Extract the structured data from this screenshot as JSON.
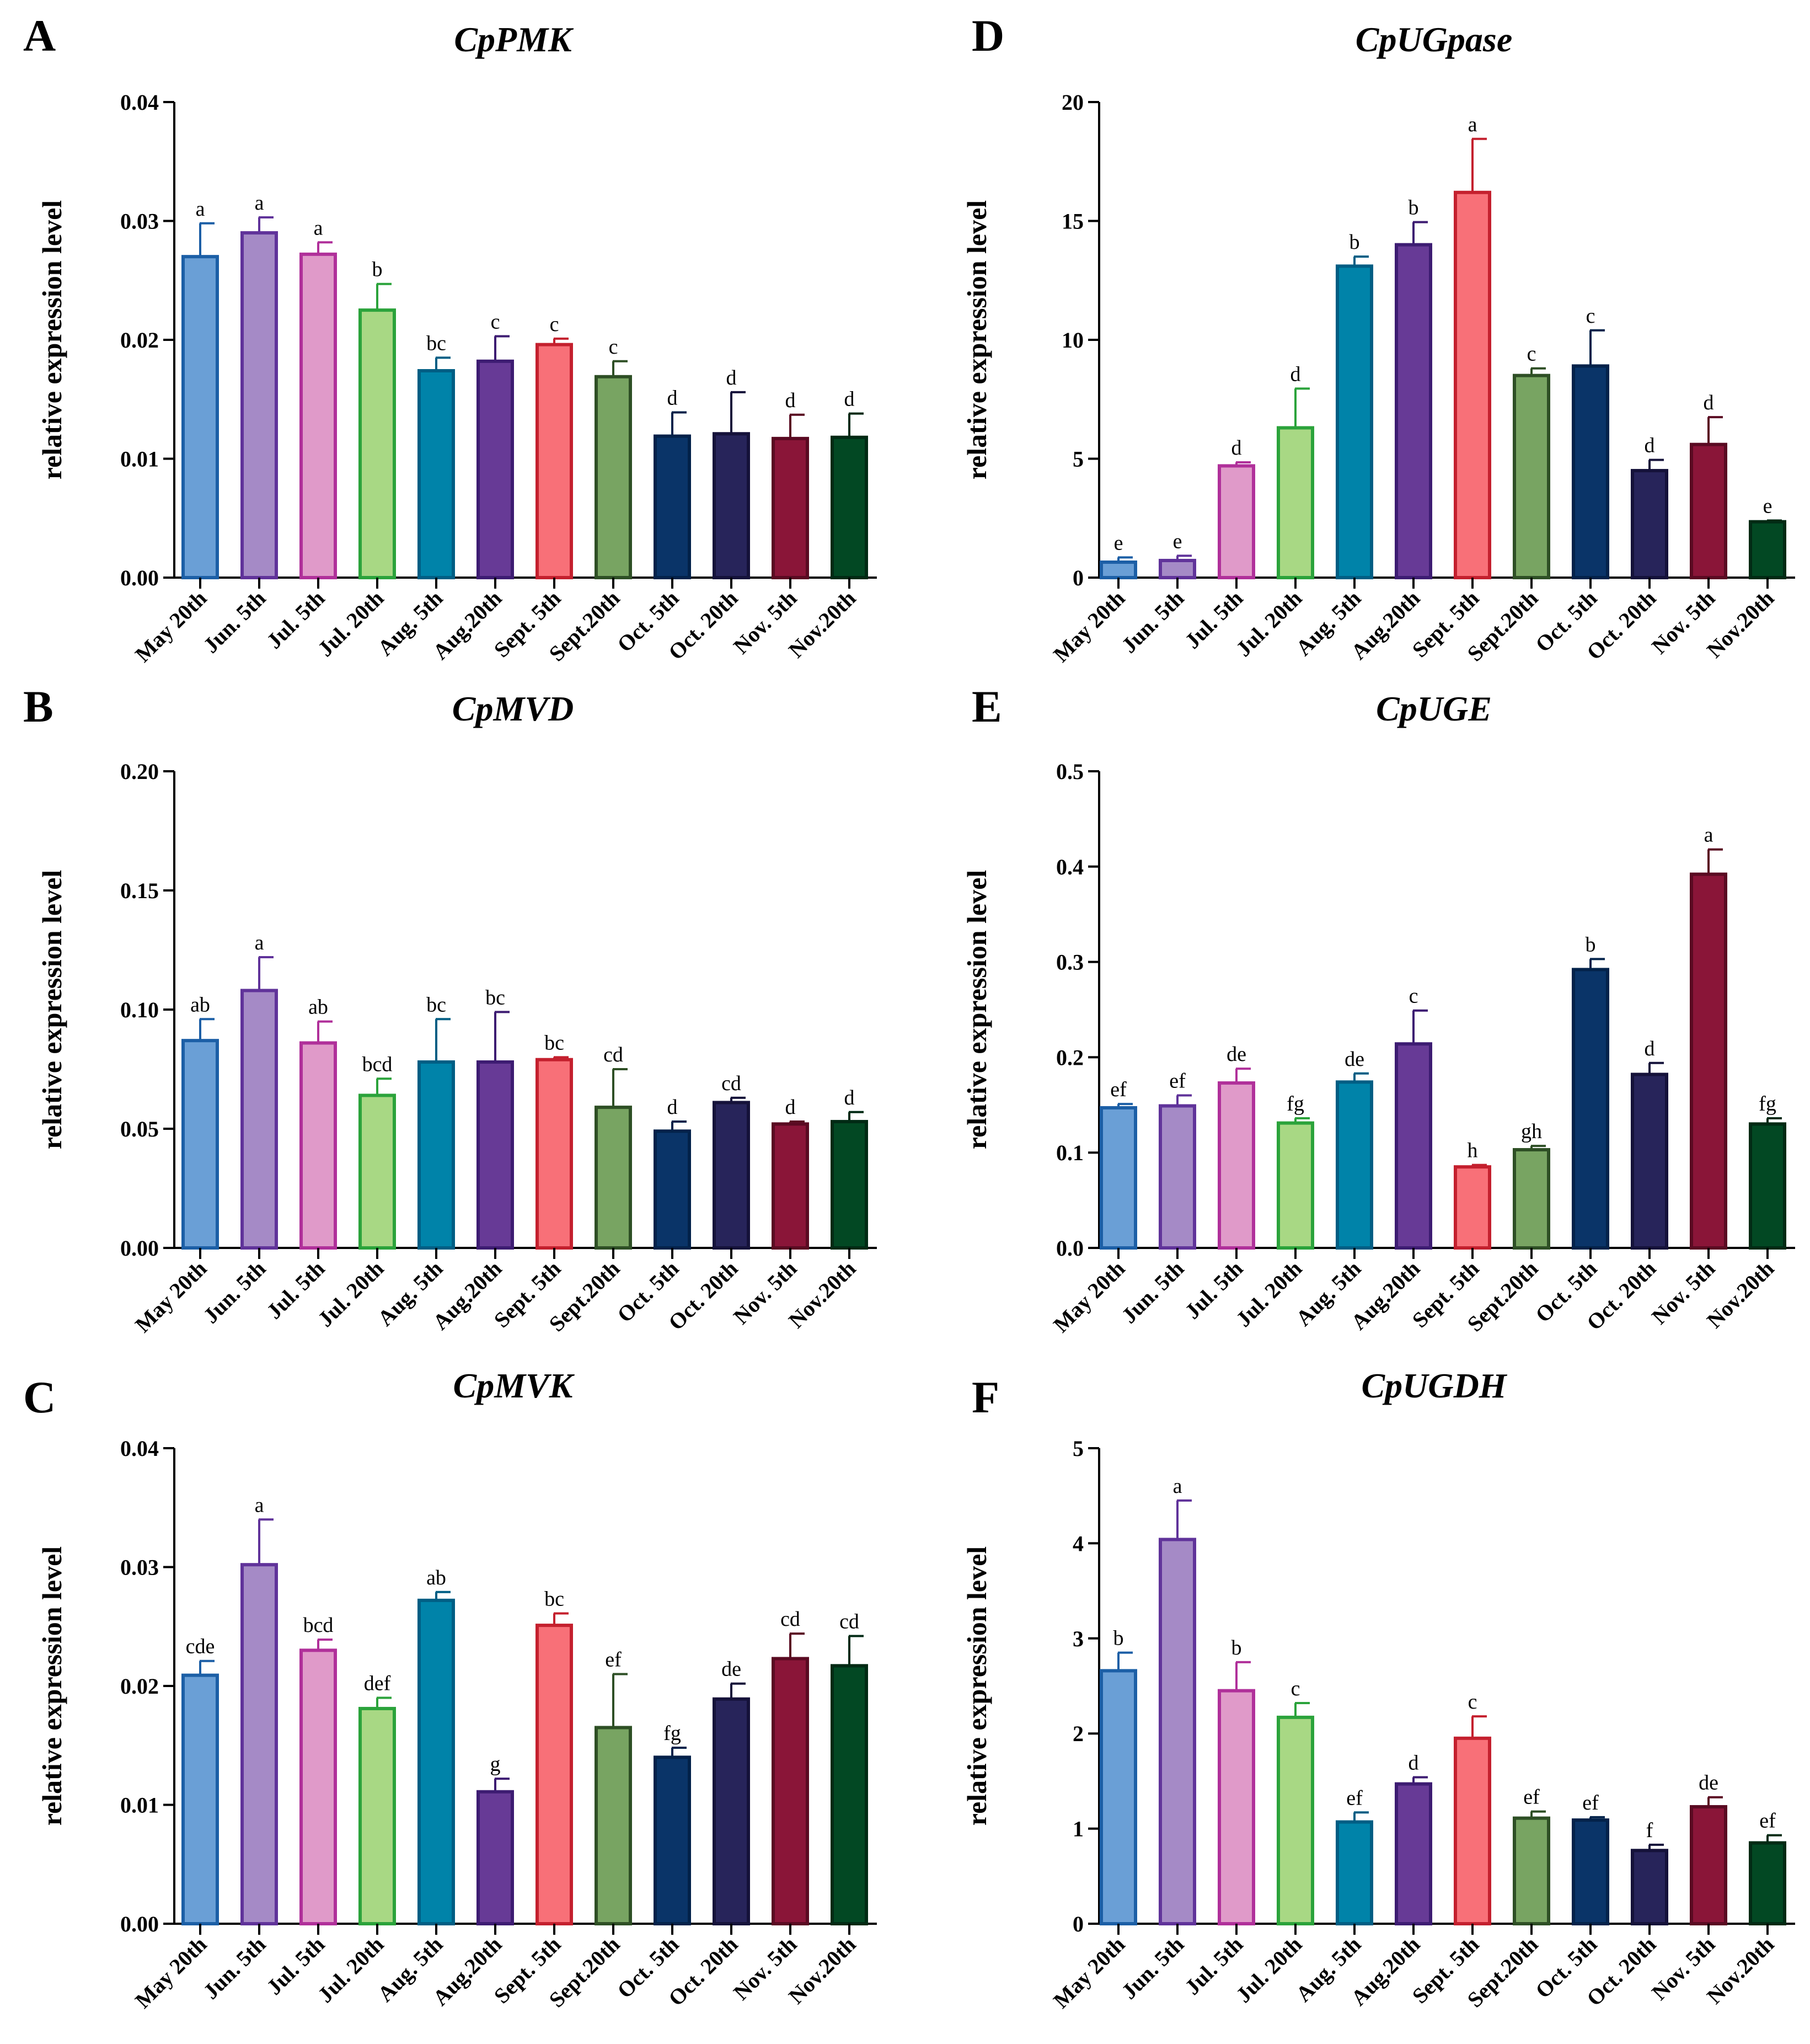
{
  "figure": {
    "categories": [
      "May 20th",
      "Jun. 5th",
      "Jul. 5th",
      "Jul. 20th",
      "Aug. 5th",
      "Aug.20th",
      "Sept. 5th",
      "Sept.20th",
      "Oct. 5th",
      "Oct. 20th",
      "Nov. 5th",
      "Nov.20th"
    ],
    "colors": {
      "fill": [
        "#6A9FD6",
        "#A58AC6",
        "#E09AC9",
        "#A8D884",
        "#0083A9",
        "#673A96",
        "#F87078",
        "#78A462",
        "#0A3468",
        "#27245A",
        "#8A1538",
        "#024823"
      ],
      "border": [
        "#1C5FA6",
        "#60339A",
        "#B0309A",
        "#2BA33B",
        "#005E84",
        "#3D1C72",
        "#C4202E",
        "#2E4F25",
        "#03224A",
        "#15123A",
        "#5A0A22",
        "#012A14"
      ]
    }
  },
  "chart_data": [
    {
      "id": "A",
      "type": "bar",
      "title": "CpPMK",
      "ylabel": "relative expression level",
      "ylim": [
        0,
        0.04
      ],
      "yticks": [
        "0.00",
        "0.01",
        "0.02",
        "0.03",
        "0.04"
      ],
      "values": [
        0.027,
        0.029,
        0.0272,
        0.0225,
        0.0174,
        0.0182,
        0.0196,
        0.0169,
        0.0119,
        0.0121,
        0.0117,
        0.0118
      ],
      "errors": [
        0.0028,
        0.0013,
        0.001,
        0.0022,
        0.0011,
        0.0021,
        0.0005,
        0.0013,
        0.002,
        0.0035,
        0.002,
        0.002
      ],
      "labels": [
        "a",
        "a",
        "a",
        "b",
        "bc",
        "c",
        "c",
        "c",
        "d",
        "d",
        "d",
        "d"
      ]
    },
    {
      "id": "B",
      "type": "bar",
      "title": "CpMVD",
      "ylabel": "relative expression level",
      "ylim": [
        0,
        0.2
      ],
      "yticks": [
        "0.00",
        "0.05",
        "0.10",
        "0.15",
        "0.20"
      ],
      "values": [
        0.087,
        0.108,
        0.086,
        0.064,
        0.078,
        0.078,
        0.079,
        0.059,
        0.049,
        0.061,
        0.052,
        0.053
      ],
      "errors": [
        0.009,
        0.014,
        0.009,
        0.007,
        0.018,
        0.021,
        0.001,
        0.016,
        0.004,
        0.002,
        0.001,
        0.004
      ],
      "labels": [
        "ab",
        "a",
        "ab",
        "bcd",
        "bc",
        "bc",
        "bc",
        "cd",
        "d",
        "cd",
        "d",
        "d"
      ]
    },
    {
      "id": "C",
      "type": "bar",
      "title": "CpMVK",
      "ylabel": "relative expression level",
      "ylim": [
        0,
        0.04
      ],
      "yticks": [
        "0.00",
        "0.01",
        "0.02",
        "0.03",
        "0.04"
      ],
      "values": [
        0.0209,
        0.0302,
        0.023,
        0.0181,
        0.0272,
        0.0111,
        0.0251,
        0.0165,
        0.014,
        0.0189,
        0.0223,
        0.0217
      ],
      "errors": [
        0.0012,
        0.0038,
        0.0009,
        0.0009,
        0.0007,
        0.0011,
        0.001,
        0.0045,
        0.0008,
        0.0013,
        0.0021,
        0.0025
      ],
      "labels": [
        "cde",
        "a",
        "bcd",
        "def",
        "ab",
        "g",
        "bc",
        "ef",
        "fg",
        "de",
        "cd",
        "cd"
      ]
    },
    {
      "id": "D",
      "type": "bar",
      "title": "CpUGpase",
      "ylabel": "relative expression level",
      "ylim": [
        0,
        20
      ],
      "yticks": [
        "0",
        "5",
        "10",
        "15",
        "20"
      ],
      "values": [
        0.65,
        0.72,
        4.7,
        6.3,
        13.1,
        14.0,
        16.2,
        8.5,
        8.9,
        4.5,
        5.6,
        2.35
      ],
      "errors": [
        0.2,
        0.2,
        0.15,
        1.65,
        0.4,
        0.95,
        2.25,
        0.3,
        1.5,
        0.45,
        1.15,
        0.05
      ],
      "labels": [
        "e",
        "e",
        "d",
        "d",
        "b",
        "b",
        "a",
        "c",
        "c",
        "d",
        "d",
        "e"
      ]
    },
    {
      "id": "E",
      "type": "bar",
      "title": "CpUGE",
      "ylabel": "relative expression level",
      "ylim": [
        0,
        0.5
      ],
      "yticks": [
        "0.0",
        "0.1",
        "0.2",
        "0.3",
        "0.4",
        "0.5"
      ],
      "values": [
        0.147,
        0.149,
        0.173,
        0.131,
        0.174,
        0.214,
        0.085,
        0.103,
        0.292,
        0.182,
        0.392,
        0.13
      ],
      "errors": [
        0.004,
        0.011,
        0.015,
        0.005,
        0.009,
        0.035,
        0.002,
        0.004,
        0.011,
        0.012,
        0.026,
        0.006
      ],
      "labels": [
        "ef",
        "ef",
        "de",
        "fg",
        "de",
        "c",
        "h",
        "gh",
        "b",
        "d",
        "a",
        "fg"
      ]
    },
    {
      "id": "F",
      "type": "bar",
      "title": "CpUGDH",
      "ylabel": "relative expression level",
      "ylim": [
        0,
        5
      ],
      "yticks": [
        "0",
        "1",
        "2",
        "3",
        "4",
        "5"
      ],
      "values": [
        2.66,
        4.04,
        2.45,
        2.17,
        1.07,
        1.47,
        1.95,
        1.11,
        1.09,
        0.77,
        1.23,
        0.85
      ],
      "errors": [
        0.19,
        0.41,
        0.3,
        0.15,
        0.1,
        0.07,
        0.23,
        0.07,
        0.03,
        0.06,
        0.1,
        0.08
      ],
      "labels": [
        "b",
        "a",
        "b",
        "c",
        "ef",
        "d",
        "c",
        "ef",
        "ef",
        "f",
        "de",
        "ef"
      ]
    }
  ]
}
